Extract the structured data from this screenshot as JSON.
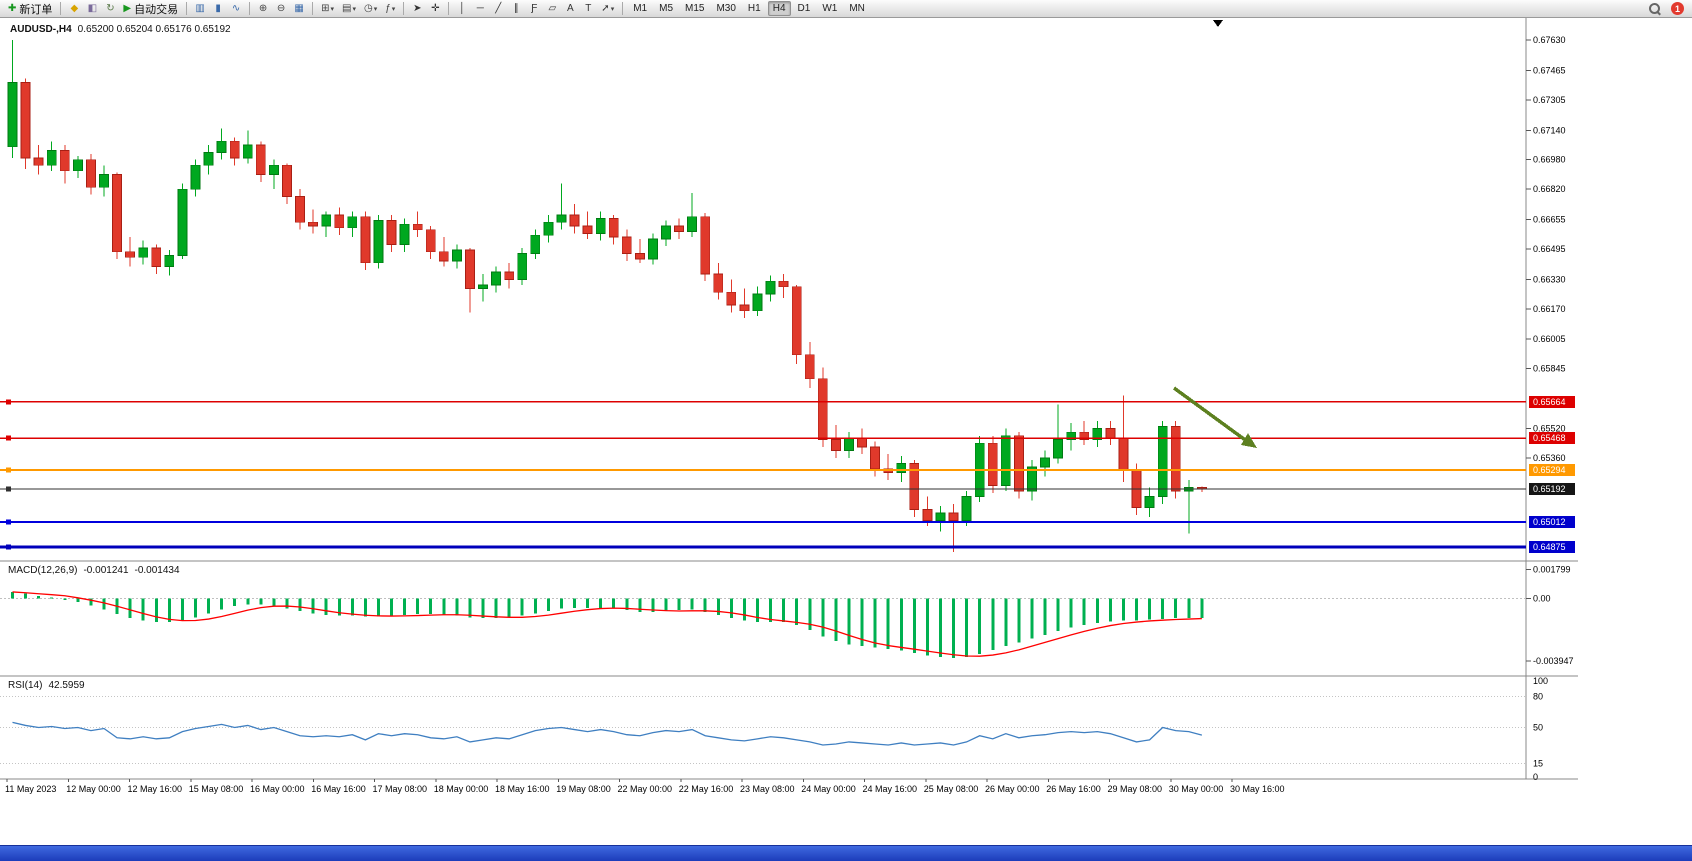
{
  "toolbar": {
    "new_order_label": "新订单",
    "autotrading_label": "自动交易",
    "timeframes": [
      "M1",
      "M5",
      "M15",
      "M30",
      "H1",
      "H4",
      "D1",
      "W1",
      "MN"
    ],
    "active_timeframe": "H4",
    "notification_count": "1",
    "items": [
      {
        "kind": "btn",
        "name": "new-order-button",
        "glyph": "✚",
        "color": "#18971f",
        "text": "新订单"
      },
      {
        "kind": "sep"
      },
      {
        "kind": "btn",
        "name": "metaeditor-button",
        "glyph": "◆",
        "color": "#d8a400"
      },
      {
        "kind": "btn",
        "name": "history-center-button",
        "glyph": "◧",
        "color": "#7a6a9a"
      },
      {
        "kind": "btn",
        "name": "refresh-button",
        "glyph": "↻",
        "color": "#5a7a4a"
      },
      {
        "kind": "btn",
        "name": "autotrading-button",
        "glyph": "▶",
        "color": "#18971f",
        "text": "自动交易"
      },
      {
        "kind": "sep"
      },
      {
        "kind": "btn",
        "name": "bar-chart-button",
        "glyph": "▥",
        "color": "#3a6aaa"
      },
      {
        "kind": "btn",
        "name": "candlestick-chart-button",
        "glyph": "▮",
        "color": "#3a6aaa"
      },
      {
        "kind": "btn",
        "name": "line-chart-button",
        "glyph": "∿",
        "color": "#3a6aaa"
      },
      {
        "kind": "sep"
      },
      {
        "kind": "btn",
        "name": "zoom-in-button",
        "glyph": "⊕",
        "color": "#444"
      },
      {
        "kind": "btn",
        "name": "zoom-out-button",
        "glyph": "⊖",
        "color": "#444"
      },
      {
        "kind": "btn",
        "name": "tile-windows-button",
        "glyph": "▦",
        "color": "#3a6aaa"
      },
      {
        "kind": "sep"
      },
      {
        "kind": "btn",
        "name": "new-chart-button",
        "glyph": "⊞",
        "color": "#444",
        "dropdown": true
      },
      {
        "kind": "btn",
        "name": "profiles-button",
        "glyph": "▤",
        "color": "#444",
        "dropdown": true
      },
      {
        "kind": "btn",
        "name": "timeframes-menu-button",
        "glyph": "◷",
        "color": "#444",
        "dropdown": true
      },
      {
        "kind": "btn",
        "name": "indicators-button",
        "glyph": "ƒ",
        "color": "#444",
        "dropdown": true
      },
      {
        "kind": "sep"
      },
      {
        "kind": "btn",
        "name": "cursor-button",
        "glyph": "➤",
        "color": "#333"
      },
      {
        "kind": "btn",
        "name": "crosshair-button",
        "glyph": "✛",
        "color": "#333"
      },
      {
        "kind": "sep"
      },
      {
        "kind": "btn",
        "name": "vertical-line-button",
        "glyph": "│",
        "color": "#333"
      },
      {
        "kind": "btn",
        "name": "horizontal-line-button",
        "glyph": "─",
        "color": "#333"
      },
      {
        "kind": "btn",
        "name": "trendline-button",
        "glyph": "╱",
        "color": "#333"
      },
      {
        "kind": "btn",
        "name": "channel-button",
        "glyph": "∥",
        "color": "#333"
      },
      {
        "kind": "btn",
        "name": "fibonacci-button",
        "glyph": "Ƒ",
        "color": "#333"
      },
      {
        "kind": "btn",
        "name": "shapes-button",
        "glyph": "▱",
        "color": "#333"
      },
      {
        "kind": "btn",
        "name": "text-button",
        "glyph": "A",
        "color": "#333"
      },
      {
        "kind": "btn",
        "name": "text-label-button",
        "glyph": "T",
        "color": "#333"
      },
      {
        "kind": "btn",
        "name": "arrows-button",
        "glyph": "➚",
        "color": "#333",
        "dropdown": true
      },
      {
        "kind": "sep"
      },
      {
        "kind": "tf"
      },
      {
        "kind": "spacer"
      },
      {
        "kind": "search",
        "name": "search-button"
      },
      {
        "kind": "badge",
        "name": "notification-badge"
      }
    ]
  },
  "chart_data": {
    "type": "candlestick",
    "symbol": "AUDUSD-,H4",
    "ohlc": "0.65200 0.65204 0.65176 0.65192",
    "colors": {
      "up": "#00a81f",
      "up_border": "#007a12",
      "down": "#e0392b",
      "down_border": "#a81f14",
      "macd_hist": "#00b050",
      "macd_signal": "#ff0000",
      "rsi": "#3f7fc1",
      "arrow": "#5d8020"
    },
    "price_axis": {
      "min": 0.648,
      "max": 0.6775,
      "ticks": [
        "0.67630",
        "0.67465",
        "0.67305",
        "0.67140",
        "0.66980",
        "0.66820",
        "0.66655",
        "0.66495",
        "0.66330",
        "0.66170",
        "0.66005",
        "0.65845",
        "0.65520",
        "0.65360"
      ]
    },
    "hlines": [
      {
        "price": 0.65664,
        "color": "#dd0000",
        "width": 1.5,
        "label": "0.65664",
        "label_bg": "#dd0000"
      },
      {
        "price": 0.65468,
        "color": "#dd0000",
        "width": 1.5,
        "label": "0.65468",
        "label_bg": "#dd0000"
      },
      {
        "price": 0.65294,
        "color": "#ff9900",
        "width": 2,
        "label": "0.65294",
        "label_bg": "#ff9900"
      },
      {
        "price": 0.65192,
        "color": "#303030",
        "width": 1,
        "label": "0.65192",
        "label_bg": "#151515"
      },
      {
        "price": 0.65012,
        "color": "#0000dd",
        "width": 2,
        "label": "0.65012",
        "label_bg": "#0000cc"
      },
      {
        "price": 0.64875,
        "color": "#0000bb",
        "width": 3,
        "label": "0.64875",
        "label_bg": "#0000cc"
      }
    ],
    "candles": [
      [
        0.6705,
        0.6763,
        0.6699,
        0.674
      ],
      [
        0.674,
        0.6742,
        0.6693,
        0.6699
      ],
      [
        0.6699,
        0.6706,
        0.669,
        0.6695
      ],
      [
        0.6695,
        0.6708,
        0.6692,
        0.6703
      ],
      [
        0.6703,
        0.6706,
        0.6685,
        0.6692
      ],
      [
        0.6692,
        0.67,
        0.6688,
        0.6698
      ],
      [
        0.6698,
        0.6701,
        0.6679,
        0.6683
      ],
      [
        0.6683,
        0.6695,
        0.6678,
        0.669
      ],
      [
        0.669,
        0.6691,
        0.6644,
        0.6648
      ],
      [
        0.6648,
        0.6656,
        0.664,
        0.6645
      ],
      [
        0.6645,
        0.6654,
        0.6641,
        0.665
      ],
      [
        0.665,
        0.6652,
        0.6636,
        0.664
      ],
      [
        0.664,
        0.6649,
        0.6635,
        0.6646
      ],
      [
        0.6646,
        0.6685,
        0.6644,
        0.6682
      ],
      [
        0.6682,
        0.6698,
        0.6678,
        0.6695
      ],
      [
        0.6695,
        0.6706,
        0.669,
        0.6702
      ],
      [
        0.6702,
        0.6715,
        0.6698,
        0.6708
      ],
      [
        0.6708,
        0.671,
        0.6695,
        0.6699
      ],
      [
        0.6699,
        0.6714,
        0.6696,
        0.6706
      ],
      [
        0.6706,
        0.6708,
        0.6686,
        0.669
      ],
      [
        0.669,
        0.6698,
        0.6682,
        0.6695
      ],
      [
        0.6695,
        0.6696,
        0.6674,
        0.6678
      ],
      [
        0.6678,
        0.6682,
        0.666,
        0.6664
      ],
      [
        0.6664,
        0.6671,
        0.6658,
        0.6662
      ],
      [
        0.6662,
        0.667,
        0.6656,
        0.6668
      ],
      [
        0.6668,
        0.6672,
        0.6657,
        0.6661
      ],
      [
        0.6661,
        0.667,
        0.6656,
        0.6667
      ],
      [
        0.6667,
        0.667,
        0.6638,
        0.6642
      ],
      [
        0.6642,
        0.6668,
        0.6639,
        0.6665
      ],
      [
        0.6665,
        0.6668,
        0.6648,
        0.6652
      ],
      [
        0.6652,
        0.6666,
        0.6648,
        0.6663
      ],
      [
        0.6663,
        0.667,
        0.6656,
        0.666
      ],
      [
        0.666,
        0.6662,
        0.6644,
        0.6648
      ],
      [
        0.6648,
        0.6656,
        0.664,
        0.6643
      ],
      [
        0.6643,
        0.6652,
        0.6639,
        0.6649
      ],
      [
        0.6649,
        0.665,
        0.6615,
        0.6628
      ],
      [
        0.6628,
        0.6636,
        0.6621,
        0.663
      ],
      [
        0.663,
        0.664,
        0.6626,
        0.6637
      ],
      [
        0.6637,
        0.6642,
        0.6628,
        0.6633
      ],
      [
        0.6633,
        0.665,
        0.663,
        0.6647
      ],
      [
        0.6647,
        0.666,
        0.6644,
        0.6657
      ],
      [
        0.6657,
        0.6668,
        0.6653,
        0.6664
      ],
      [
        0.6664,
        0.6685,
        0.666,
        0.6668
      ],
      [
        0.6668,
        0.6674,
        0.6658,
        0.6662
      ],
      [
        0.6662,
        0.667,
        0.6655,
        0.6658
      ],
      [
        0.6658,
        0.667,
        0.6654,
        0.6666
      ],
      [
        0.6666,
        0.6668,
        0.6652,
        0.6656
      ],
      [
        0.6656,
        0.666,
        0.6643,
        0.6647
      ],
      [
        0.6647,
        0.6655,
        0.6642,
        0.6644
      ],
      [
        0.6644,
        0.6658,
        0.6641,
        0.6655
      ],
      [
        0.6655,
        0.6665,
        0.6651,
        0.6662
      ],
      [
        0.6662,
        0.6666,
        0.6655,
        0.6659
      ],
      [
        0.6659,
        0.668,
        0.6656,
        0.6667
      ],
      [
        0.6667,
        0.6669,
        0.6632,
        0.6636
      ],
      [
        0.6636,
        0.6642,
        0.6622,
        0.6626
      ],
      [
        0.6626,
        0.6633,
        0.6615,
        0.6619
      ],
      [
        0.6619,
        0.6628,
        0.6612,
        0.6616
      ],
      [
        0.6616,
        0.6629,
        0.6613,
        0.6625
      ],
      [
        0.6625,
        0.6635,
        0.6621,
        0.6632
      ],
      [
        0.6632,
        0.6636,
        0.6623,
        0.6629
      ],
      [
        0.6629,
        0.663,
        0.6587,
        0.6592
      ],
      [
        0.6592,
        0.6599,
        0.6574,
        0.6579
      ],
      [
        0.6579,
        0.6585,
        0.6542,
        0.6546
      ],
      [
        0.6546,
        0.6554,
        0.6536,
        0.654
      ],
      [
        0.654,
        0.655,
        0.6536,
        0.6547
      ],
      [
        0.6547,
        0.6552,
        0.6538,
        0.6542
      ],
      [
        0.6542,
        0.6545,
        0.6526,
        0.653
      ],
      [
        0.653,
        0.6538,
        0.6524,
        0.6528
      ],
      [
        0.6528,
        0.6537,
        0.6523,
        0.6533
      ],
      [
        0.6533,
        0.6535,
        0.6504,
        0.6508
      ],
      [
        0.6508,
        0.6515,
        0.6499,
        0.6502
      ],
      [
        0.6502,
        0.651,
        0.6496,
        0.6506
      ],
      [
        0.6506,
        0.6511,
        0.6485,
        0.6502
      ],
      [
        0.6502,
        0.6518,
        0.6499,
        0.6515
      ],
      [
        0.6515,
        0.6548,
        0.6512,
        0.6544
      ],
      [
        0.6544,
        0.6548,
        0.6517,
        0.6521
      ],
      [
        0.6521,
        0.6552,
        0.6518,
        0.6548
      ],
      [
        0.6548,
        0.655,
        0.6514,
        0.6518
      ],
      [
        0.6518,
        0.6535,
        0.6513,
        0.6531
      ],
      [
        0.6531,
        0.654,
        0.6526,
        0.6536
      ],
      [
        0.6536,
        0.6565,
        0.6533,
        0.6546
      ],
      [
        0.6546,
        0.6555,
        0.654,
        0.655
      ],
      [
        0.655,
        0.6556,
        0.6543,
        0.6546
      ],
      [
        0.6546,
        0.6556,
        0.6542,
        0.6552
      ],
      [
        0.6552,
        0.6556,
        0.6543,
        0.6547
      ],
      [
        0.6547,
        0.657,
        0.6523,
        0.6529
      ],
      [
        0.6529,
        0.6533,
        0.6505,
        0.6509
      ],
      [
        0.6509,
        0.652,
        0.6504,
        0.6515
      ],
      [
        0.6515,
        0.6556,
        0.6511,
        0.6553
      ],
      [
        0.6553,
        0.6556,
        0.6514,
        0.6518
      ],
      [
        0.6518,
        0.6524,
        0.6495,
        0.652
      ],
      [
        0.652,
        0.65204,
        0.65176,
        0.65192
      ]
    ],
    "macd": {
      "label": "MACD(12,26,9)",
      "value_main": "-0.001241",
      "value_signal": "-0.001434",
      "scale": [
        "0.001799",
        "0.00",
        "-0.003947"
      ],
      "range": {
        "max": 0.00235,
        "min": -0.0049
      },
      "hist": [
        0.0004,
        0.0003,
        0.00015,
        5e-05,
        -0.0001,
        -0.00025,
        -0.00045,
        -0.0007,
        -0.001,
        -0.00125,
        -0.0014,
        -0.0015,
        -0.0015,
        -0.0014,
        -0.0012,
        -0.00095,
        -0.0007,
        -0.0005,
        -0.0004,
        -0.0004,
        -0.0005,
        -0.00065,
        -0.0008,
        -0.00095,
        -0.00105,
        -0.0011,
        -0.0011,
        -0.00115,
        -0.00115,
        -0.0011,
        -0.00105,
        -0.001,
        -0.001,
        -0.00105,
        -0.0011,
        -0.0012,
        -0.00125,
        -0.00125,
        -0.0012,
        -0.0011,
        -0.00095,
        -0.0008,
        -0.00065,
        -0.0006,
        -0.0006,
        -0.0006,
        -0.00065,
        -0.00075,
        -0.00085,
        -0.00085,
        -0.0008,
        -0.00075,
        -0.0007,
        -0.00085,
        -0.00105,
        -0.00125,
        -0.0014,
        -0.0015,
        -0.0015,
        -0.0015,
        -0.0017,
        -0.002,
        -0.0024,
        -0.0027,
        -0.0029,
        -0.003,
        -0.0031,
        -0.0032,
        -0.0033,
        -0.00345,
        -0.0036,
        -0.0037,
        -0.00375,
        -0.0037,
        -0.0035,
        -0.00325,
        -0.003,
        -0.0028,
        -0.00255,
        -0.0023,
        -0.00205,
        -0.00185,
        -0.0017,
        -0.00155,
        -0.00145,
        -0.0014,
        -0.0014,
        -0.00135,
        -0.0013,
        -0.00125,
        -0.00125,
        -0.00124
      ]
    },
    "rsi": {
      "label": "RSI(14)",
      "value": "42.5959",
      "scale": [
        "100",
        "80",
        "50",
        "15",
        "0"
      ],
      "levels": [
        80,
        50,
        15
      ],
      "values": [
        55,
        52,
        50,
        51,
        49,
        50,
        47,
        49,
        40,
        39,
        41,
        39,
        40,
        46,
        49,
        51,
        53,
        50,
        52,
        48,
        50,
        46,
        42,
        41,
        42,
        41,
        43,
        38,
        44,
        42,
        44,
        43,
        40,
        39,
        41,
        36,
        38,
        40,
        39,
        43,
        47,
        49,
        50,
        48,
        46,
        48,
        46,
        43,
        42,
        45,
        47,
        46,
        48,
        42,
        40,
        38,
        37,
        39,
        41,
        40,
        38,
        36,
        33,
        34,
        36,
        35,
        34,
        33,
        35,
        33,
        34,
        35,
        33,
        36,
        42,
        39,
        44,
        40,
        42,
        43,
        45,
        46,
        45,
        46,
        44,
        40,
        36,
        38,
        50,
        47,
        46,
        42.6
      ]
    },
    "x_labels": [
      "11 May 2023",
      "12 May 00:00",
      "12 May 16:00",
      "15 May 08:00",
      "16 May 00:00",
      "16 May 16:00",
      "17 May 08:00",
      "18 May 00:00",
      "18 May 16:00",
      "19 May 08:00",
      "22 May 00:00",
      "22 May 16:00",
      "23 May 08:00",
      "24 May 00:00",
      "24 May 16:00",
      "25 May 08:00",
      "26 May 00:00",
      "26 May 16:00",
      "29 May 08:00",
      "30 May 00:00",
      "30 May 16:00"
    ]
  }
}
